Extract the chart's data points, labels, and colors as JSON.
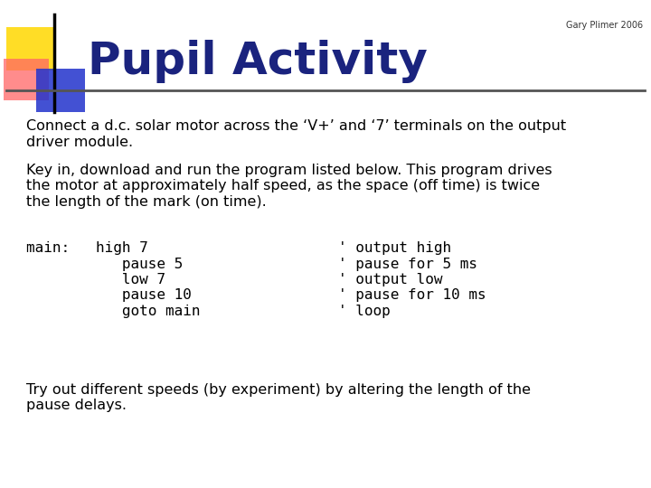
{
  "title": "Pupil Activity",
  "title_color": "#1a237e",
  "subtitle": "Gary Plimer 2006",
  "background_color": "#ffffff",
  "para1": "Connect a d.c. solar motor across the ‘V+’ and ‘7’ terminals on the output\ndriver module.",
  "para2": "Key in, download and run the program listed below. This program drives\nthe motor at approximately half speed, as the space (off time) is twice\nthe length of the mark (on time).",
  "code_left": [
    "main:   high 7",
    "           pause 5",
    "           low 7",
    "           pause 10",
    "           goto main"
  ],
  "code_right": [
    "' output high",
    "' pause for 5 ms",
    "' output low",
    "' pause for 10 ms",
    "' loop"
  ],
  "para3": "Try out different speeds (by experiment) by altering the length of the\npause delays."
}
